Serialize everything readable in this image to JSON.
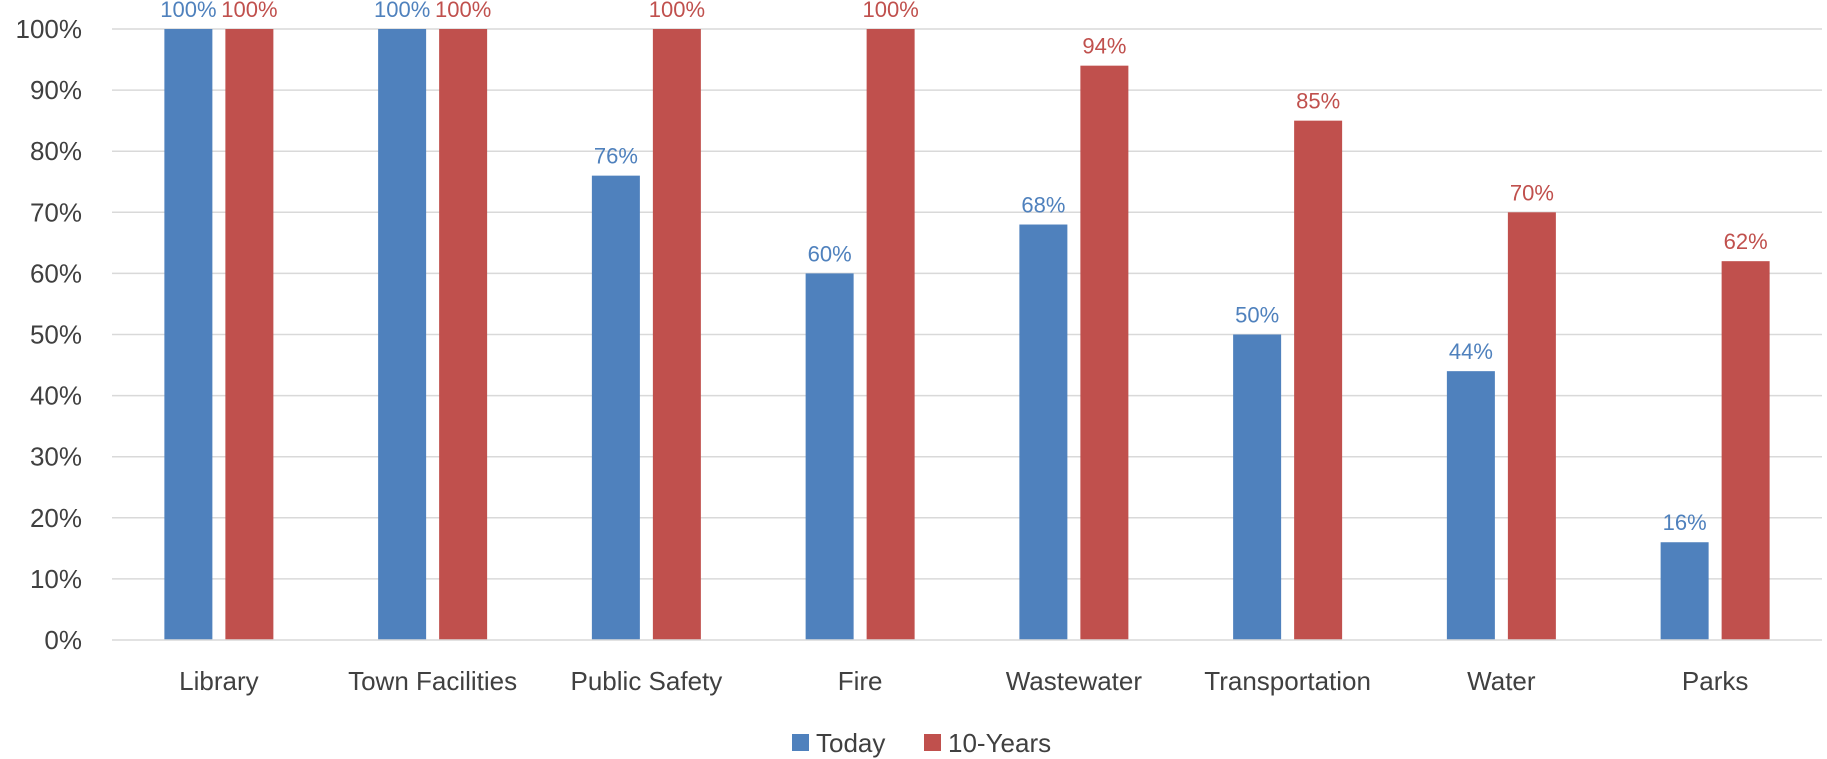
{
  "chart_data": {
    "type": "bar",
    "categories": [
      "Library",
      "Town Facilities",
      "Public Safety",
      "Fire",
      "Wastewater",
      "Transportation",
      "Water",
      "Parks"
    ],
    "series": [
      {
        "name": "Today",
        "color": "#4F81BD",
        "values": [
          100,
          100,
          76,
          60,
          68,
          50,
          44,
          16
        ]
      },
      {
        "name": "10-Years",
        "color": "#C0504D",
        "values": [
          100,
          100,
          100,
          100,
          94,
          85,
          70,
          62
        ]
      }
    ],
    "ylim": [
      0,
      100
    ],
    "yticks": [
      0,
      10,
      20,
      30,
      40,
      50,
      60,
      70,
      80,
      90,
      100
    ],
    "value_suffix": "%",
    "grid": true,
    "legend_position": "bottom"
  }
}
